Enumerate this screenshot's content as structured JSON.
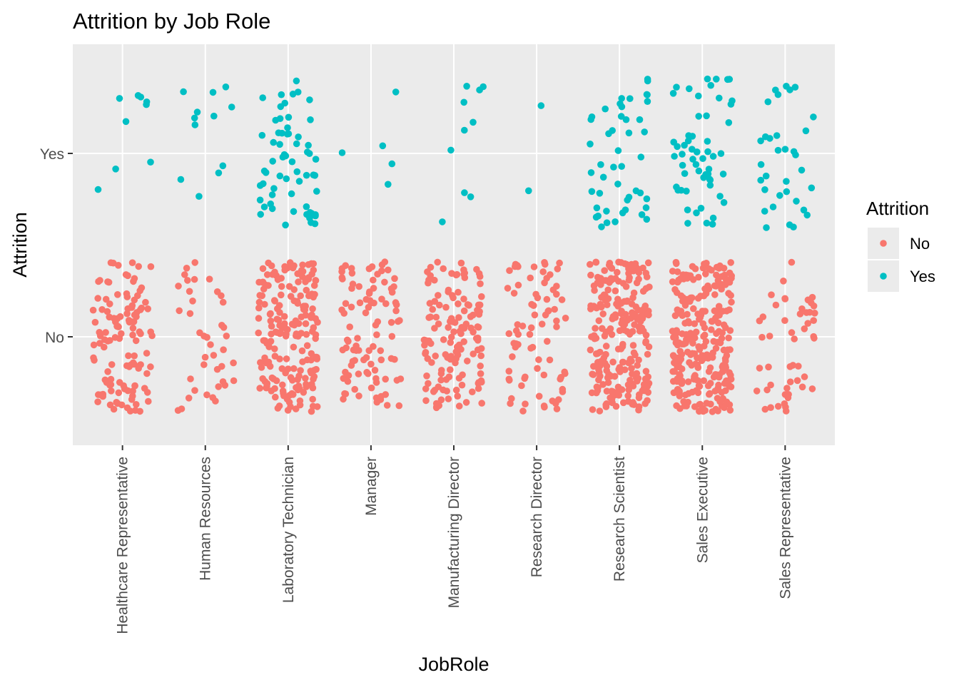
{
  "chart_data": {
    "type": "scatter",
    "title": "Attrition by Job Role",
    "xlabel": "JobRole",
    "ylabel": "Attrition",
    "categories": [
      "Healthcare Representative",
      "Human Resources",
      "Laboratory Technician",
      "Manager",
      "Manufacturing Director",
      "Research Director",
      "Research Scientist",
      "Sales Executive",
      "Sales Representative"
    ],
    "y_levels": [
      "No",
      "Yes"
    ],
    "grid": true,
    "legend": {
      "title": "Attrition",
      "position": "right",
      "entries": [
        "No",
        "Yes"
      ]
    },
    "colors": {
      "No": "#F8766D",
      "Yes": "#00BFC4",
      "panel": "#EBEBEB",
      "grid": "#FFFFFF"
    },
    "series": [
      {
        "name": "No",
        "counts": [
          122,
          40,
          197,
          97,
          135,
          78,
          245,
          269,
          50
        ]
      },
      {
        "name": "Yes",
        "counts": [
          9,
          12,
          62,
          5,
          10,
          2,
          47,
          57,
          33
        ]
      }
    ]
  }
}
